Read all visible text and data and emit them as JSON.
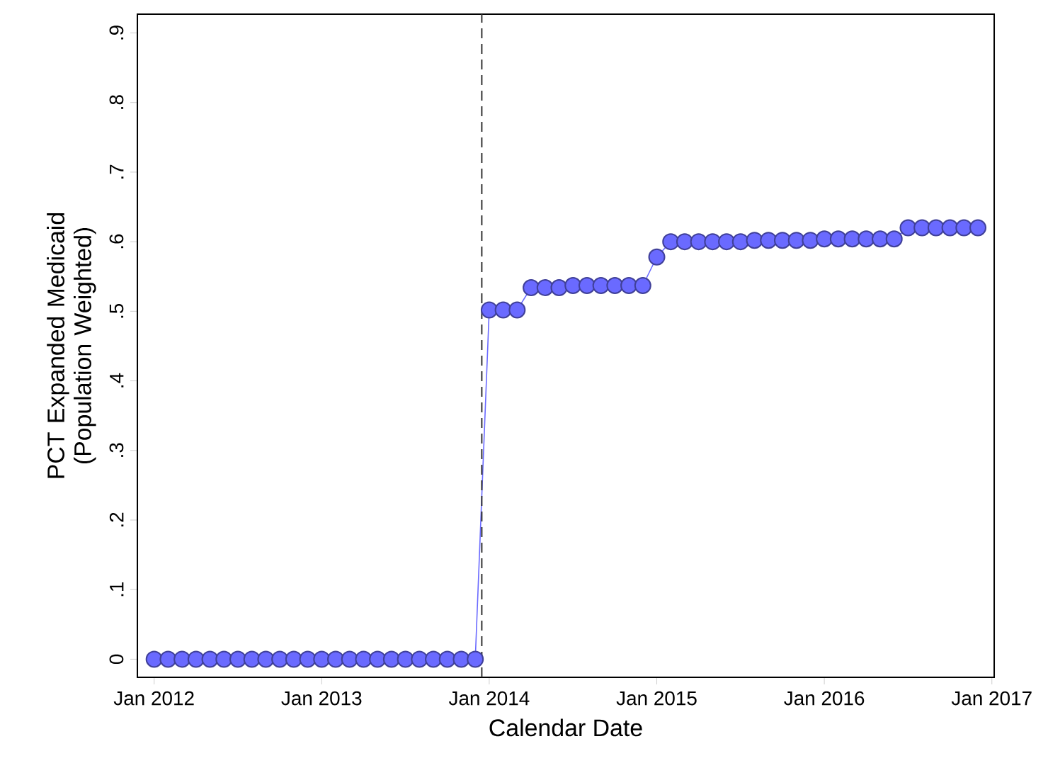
{
  "chart_data": {
    "type": "line",
    "xlabel": "Calendar Date",
    "ylabel": "PCT Expanded Medicaid (Population Weighted)",
    "x": [
      "2012-01",
      "2012-02",
      "2012-03",
      "2012-04",
      "2012-05",
      "2012-06",
      "2012-07",
      "2012-08",
      "2012-09",
      "2012-10",
      "2012-11",
      "2012-12",
      "2013-01",
      "2013-02",
      "2013-03",
      "2013-04",
      "2013-05",
      "2013-06",
      "2013-07",
      "2013-08",
      "2013-09",
      "2013-10",
      "2013-11",
      "2013-12",
      "2014-01",
      "2014-02",
      "2014-03",
      "2014-04",
      "2014-05",
      "2014-06",
      "2014-07",
      "2014-08",
      "2014-09",
      "2014-10",
      "2014-11",
      "2014-12",
      "2015-01",
      "2015-02",
      "2015-03",
      "2015-04",
      "2015-05",
      "2015-06",
      "2015-07",
      "2015-08",
      "2015-09",
      "2015-10",
      "2015-11",
      "2015-12",
      "2016-01",
      "2016-02",
      "2016-03",
      "2016-04",
      "2016-05",
      "2016-06",
      "2016-07",
      "2016-08",
      "2016-09",
      "2016-10",
      "2016-11",
      "2016-12"
    ],
    "series": [
      {
        "color": "#6a6aff",
        "values": [
          0,
          0,
          0,
          0,
          0,
          0,
          0,
          0,
          0,
          0,
          0,
          0,
          0,
          0,
          0,
          0,
          0,
          0,
          0,
          0,
          0,
          0,
          0,
          0,
          0.502,
          0.502,
          0.502,
          0.534,
          0.534,
          0.534,
          0.537,
          0.537,
          0.537,
          0.537,
          0.537,
          0.537,
          0.578,
          0.6,
          0.6,
          0.6,
          0.6,
          0.6,
          0.6,
          0.602,
          0.602,
          0.602,
          0.602,
          0.602,
          0.604,
          0.604,
          0.604,
          0.604,
          0.604,
          0.604,
          0.62,
          0.62,
          0.62,
          0.62,
          0.62,
          0.62
        ]
      }
    ],
    "marker": "circle",
    "line_style": "solid",
    "xlim": [
      "2011-11-25",
      "2017-01-06"
    ],
    "xticks": [
      {
        "value": "2012-01",
        "label": "Jan 2012"
      },
      {
        "value": "2013-01",
        "label": "Jan 2013"
      },
      {
        "value": "2014-01",
        "label": "Jan 2014"
      },
      {
        "value": "2015-01",
        "label": "Jan 2015"
      },
      {
        "value": "2016-01",
        "label": "Jan 2016"
      },
      {
        "value": "2017-01",
        "label": "Jan 2017"
      }
    ],
    "ylim": [
      -0.026,
      0.927
    ],
    "yticks": [
      0,
      {
        "value": 0.1,
        "label": ".1"
      },
      {
        "value": 0.2,
        "label": ".2"
      },
      {
        "value": 0.3,
        "label": ".3"
      },
      {
        "value": 0.4,
        "label": ".4"
      },
      {
        "value": 0.5,
        "label": ".5"
      },
      {
        "value": 0.6,
        "label": ".6"
      },
      {
        "value": 0.7,
        "label": ".7"
      },
      {
        "value": 0.8,
        "label": ".8"
      },
      {
        "value": 0.9,
        "label": ".9"
      }
    ],
    "ref_lines": [
      {
        "axis": "x",
        "value": "2013-12-15",
        "color": "#333333",
        "line_style": "dashed"
      }
    ]
  }
}
